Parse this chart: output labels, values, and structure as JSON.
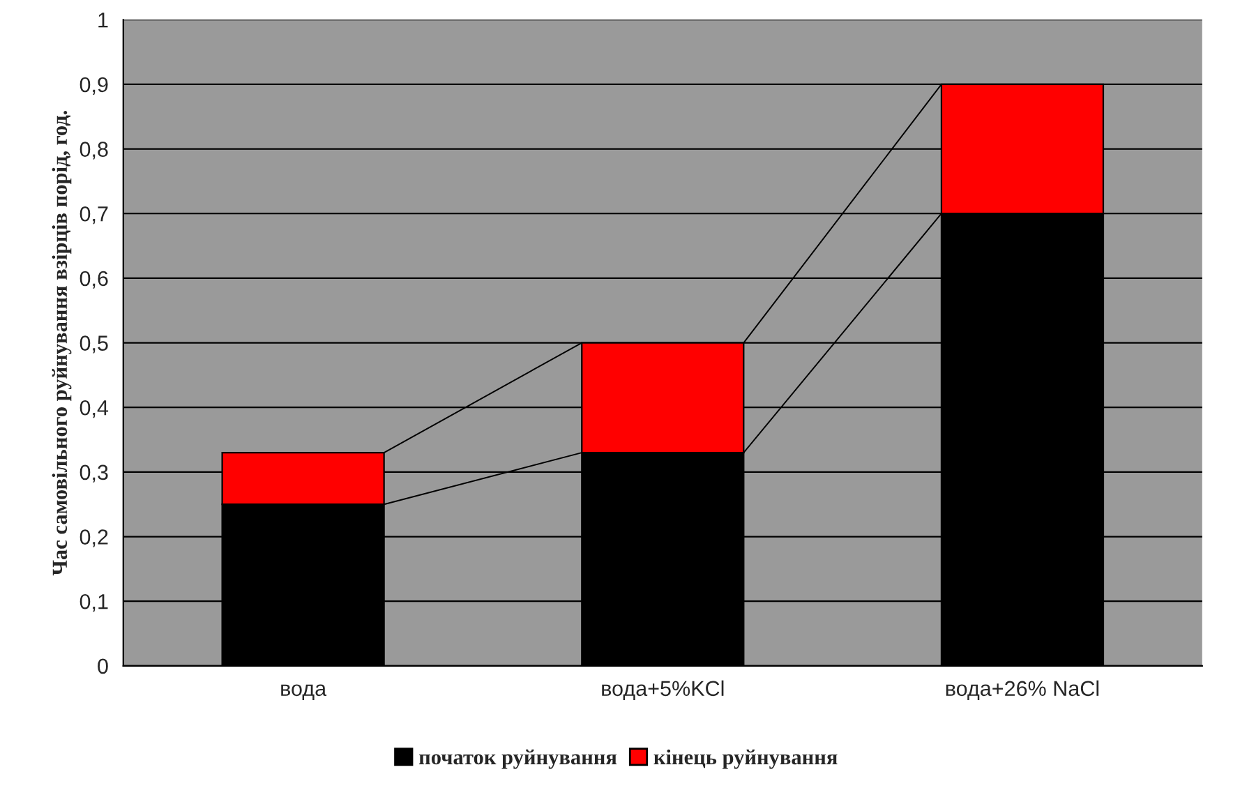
{
  "chart_data": {
    "type": "bar",
    "ylabel": "Час самовільного руйнування взірців порід, год.",
    "categories": [
      "вода",
      "вода+5%KCl",
      "вода+26% NaCl"
    ],
    "stacked": true,
    "series": [
      {
        "name": "початок руйнування",
        "color": "#000000",
        "values": [
          0.25,
          0.33,
          0.7
        ]
      },
      {
        "name": "кінець руйнування",
        "color": "#ff0000",
        "values": [
          0.08,
          0.17,
          0.2
        ]
      }
    ],
    "ylim": [
      0,
      1
    ],
    "yticks": [
      0,
      {
        "value": 0.1,
        "label": "0,1"
      },
      {
        "value": 0.2,
        "label": "0,2"
      },
      {
        "value": 0.3,
        "label": "0,3"
      },
      {
        "value": 0.4,
        "label": "0,4"
      },
      {
        "value": 0.5,
        "label": "0,5"
      },
      {
        "value": 0.6,
        "label": "0,6"
      },
      {
        "value": 0.7,
        "label": "0,7"
      },
      {
        "value": 0.8,
        "label": "0,8"
      },
      {
        "value": 0.9,
        "label": "0,9"
      },
      1
    ],
    "grid": "y",
    "legend": "bottom"
  }
}
